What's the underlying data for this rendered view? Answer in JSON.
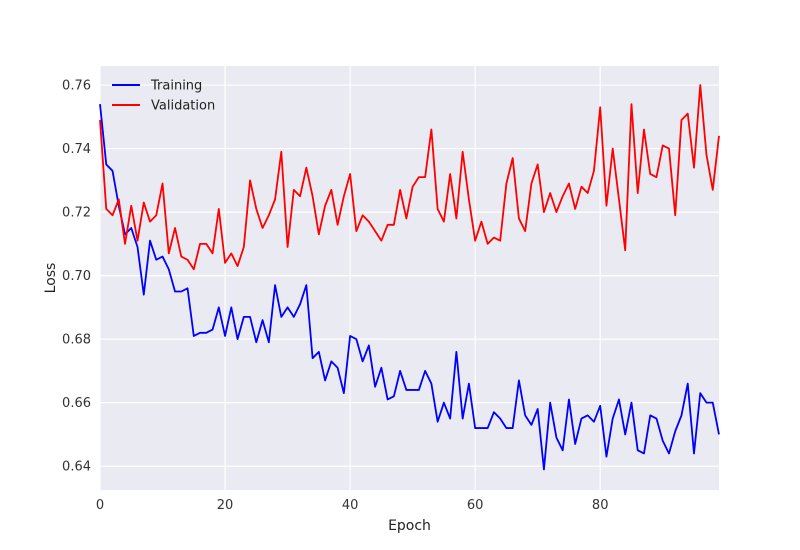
{
  "chart_data": {
    "type": "line",
    "title": "",
    "xlabel": "Epoch",
    "ylabel": "Loss",
    "xlim": [
      0,
      99
    ],
    "ylim": [
      0.6325,
      0.766
    ],
    "xticks": [
      0,
      20,
      40,
      60,
      80
    ],
    "yticks": [
      0.64,
      0.66,
      0.68,
      0.7,
      0.72,
      0.74,
      0.76
    ],
    "xtick_labels": [
      "0",
      "20",
      "40",
      "60",
      "80"
    ],
    "ytick_labels": [
      "0.64",
      "0.66",
      "0.68",
      "0.70",
      "0.72",
      "0.74",
      "0.76"
    ],
    "grid": true,
    "background": "#EAEAF2",
    "legend_position": "top-left",
    "x": [
      0,
      1,
      2,
      3,
      4,
      5,
      6,
      7,
      8,
      9,
      10,
      11,
      12,
      13,
      14,
      15,
      16,
      17,
      18,
      19,
      20,
      21,
      22,
      23,
      24,
      25,
      26,
      27,
      28,
      29,
      30,
      31,
      32,
      33,
      34,
      35,
      36,
      37,
      38,
      39,
      40,
      41,
      42,
      43,
      44,
      45,
      46,
      47,
      48,
      49,
      50,
      51,
      52,
      53,
      54,
      55,
      56,
      57,
      58,
      59,
      60,
      61,
      62,
      63,
      64,
      65,
      66,
      67,
      68,
      69,
      70,
      71,
      72,
      73,
      74,
      75,
      76,
      77,
      78,
      79,
      80,
      81,
      82,
      83,
      84,
      85,
      86,
      87,
      88,
      89,
      90,
      91,
      92,
      93,
      94,
      95,
      96,
      97,
      98,
      99
    ],
    "series": [
      {
        "name": "Training",
        "color": "#0000FF",
        "values": [
          0.754,
          0.735,
          0.733,
          0.722,
          0.713,
          0.715,
          0.709,
          0.694,
          0.711,
          0.705,
          0.706,
          0.702,
          0.695,
          0.695,
          0.696,
          0.681,
          0.682,
          0.682,
          0.683,
          0.69,
          0.681,
          0.69,
          0.68,
          0.687,
          0.687,
          0.679,
          0.686,
          0.679,
          0.697,
          0.687,
          0.69,
          0.687,
          0.691,
          0.697,
          0.674,
          0.676,
          0.667,
          0.673,
          0.671,
          0.663,
          0.681,
          0.68,
          0.673,
          0.678,
          0.665,
          0.671,
          0.661,
          0.662,
          0.67,
          0.664,
          0.664,
          0.664,
          0.67,
          0.666,
          0.654,
          0.66,
          0.655,
          0.676,
          0.655,
          0.666,
          0.652,
          0.652,
          0.652,
          0.657,
          0.655,
          0.652,
          0.652,
          0.667,
          0.656,
          0.653,
          0.658,
          0.639,
          0.66,
          0.649,
          0.645,
          0.661,
          0.647,
          0.655,
          0.656,
          0.654,
          0.659,
          0.643,
          0.655,
          0.661,
          0.65,
          0.66,
          0.645,
          0.644,
          0.656,
          0.655,
          0.648,
          0.644,
          0.651,
          0.656,
          0.666,
          0.644,
          0.663,
          0.66,
          0.66,
          0.65
        ]
      },
      {
        "name": "Validation",
        "color": "#FF0000",
        "values": [
          0.749,
          0.721,
          0.719,
          0.724,
          0.71,
          0.722,
          0.711,
          0.723,
          0.717,
          0.719,
          0.729,
          0.707,
          0.715,
          0.706,
          0.705,
          0.702,
          0.71,
          0.71,
          0.707,
          0.721,
          0.704,
          0.707,
          0.703,
          0.709,
          0.73,
          0.721,
          0.715,
          0.719,
          0.724,
          0.739,
          0.709,
          0.727,
          0.725,
          0.734,
          0.725,
          0.713,
          0.722,
          0.727,
          0.716,
          0.725,
          0.732,
          0.714,
          0.719,
          0.717,
          0.714,
          0.711,
          0.716,
          0.716,
          0.727,
          0.718,
          0.728,
          0.731,
          0.731,
          0.746,
          0.721,
          0.717,
          0.732,
          0.718,
          0.739,
          0.724,
          0.711,
          0.717,
          0.71,
          0.712,
          0.711,
          0.729,
          0.737,
          0.718,
          0.714,
          0.729,
          0.735,
          0.72,
          0.726,
          0.72,
          0.725,
          0.729,
          0.721,
          0.728,
          0.726,
          0.733,
          0.753,
          0.722,
          0.74,
          0.724,
          0.708,
          0.754,
          0.726,
          0.746,
          0.732,
          0.731,
          0.741,
          0.74,
          0.719,
          0.749,
          0.751,
          0.734,
          0.76,
          0.738,
          0.727,
          0.744
        ]
      }
    ]
  }
}
